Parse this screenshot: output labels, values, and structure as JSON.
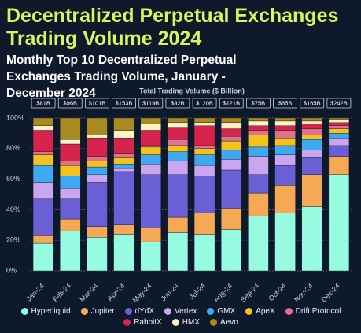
{
  "chart_data": {
    "type": "stacked_bar_100",
    "title": "Decentralized Perpetual Exchanges Trading Volume 2024",
    "subtitle": "Monthly Top 10 Decentralized Perpetual Exchanges Trading Volume, January - December 2024",
    "annotation_title": "Total Trading Volume ($ Billion)",
    "total_labels": [
      "$81B",
      "$96B",
      "$101B",
      "$153B",
      "$119B",
      "$92B",
      "$120B",
      "$121B",
      "$75B",
      "$85B",
      "$165B",
      "$242B"
    ],
    "categories": [
      "Jan-24",
      "Feb-24",
      "Mar-24",
      "Apr-24",
      "May-24",
      "Jun-24",
      "Jul-24",
      "Aug-24",
      "Sep-24",
      "Oct-24",
      "Nov-24",
      "Dec-24"
    ],
    "series": [
      {
        "name": "Hyperliquid",
        "color": "#97fbe2",
        "values": [
          18,
          26,
          22,
          24,
          19,
          25,
          24,
          27,
          36,
          38,
          42,
          63
        ]
      },
      {
        "name": "Jupiter",
        "color": "#f5a954",
        "values": [
          5,
          8,
          7,
          6,
          9,
          10,
          14,
          14,
          15,
          18,
          21,
          12
        ]
      },
      {
        "name": "dYdX",
        "color": "#6b5fd6",
        "values": [
          24,
          13,
          29,
          35,
          35,
          28,
          24,
          25,
          12,
          13,
          11,
          7
        ]
      },
      {
        "name": "Vertex",
        "color": "#c9a7f0",
        "values": [
          11,
          7,
          5,
          2,
          7,
          9,
          7,
          7,
          12,
          7,
          5,
          5
        ]
      },
      {
        "name": "GMX",
        "color": "#3da9f2",
        "values": [
          11,
          8,
          5,
          3,
          6,
          6,
          7,
          6,
          6,
          6,
          7,
          3
        ]
      },
      {
        "name": "ApeX",
        "color": "#f5c21b",
        "values": [
          7,
          7,
          4,
          4,
          5,
          4,
          4,
          6,
          8,
          5,
          3,
          3
        ]
      },
      {
        "name": "Drift Protocol",
        "color": "#e0728e",
        "values": [
          2,
          3,
          3,
          3,
          1,
          4,
          2,
          3,
          3,
          5,
          4,
          2
        ]
      },
      {
        "name": "RabbitX",
        "color": "#d8234c",
        "values": [
          14,
          11,
          12,
          10,
          10,
          8,
          13,
          5,
          3,
          3,
          3,
          2
        ]
      },
      {
        "name": "HMX",
        "color": "#fdf2c6",
        "values": [
          3,
          3,
          2,
          5,
          4,
          3,
          2,
          4,
          3,
          3,
          2,
          2
        ]
      },
      {
        "name": "Aevo",
        "color": "#a88a1f",
        "values": [
          5,
          14,
          11,
          8,
          4,
          3,
          3,
          3,
          2,
          2,
          2,
          1
        ]
      }
    ],
    "ylim": [
      0,
      100
    ],
    "yticks": [
      {
        "value": 0,
        "label": "0%"
      },
      {
        "value": 20,
        "label": "20%"
      },
      {
        "value": 40,
        "label": "40%"
      },
      {
        "value": 60,
        "label": "60%"
      },
      {
        "value": 80,
        "label": "80%"
      },
      {
        "value": 100,
        "label": "100%"
      }
    ],
    "grid": true
  }
}
